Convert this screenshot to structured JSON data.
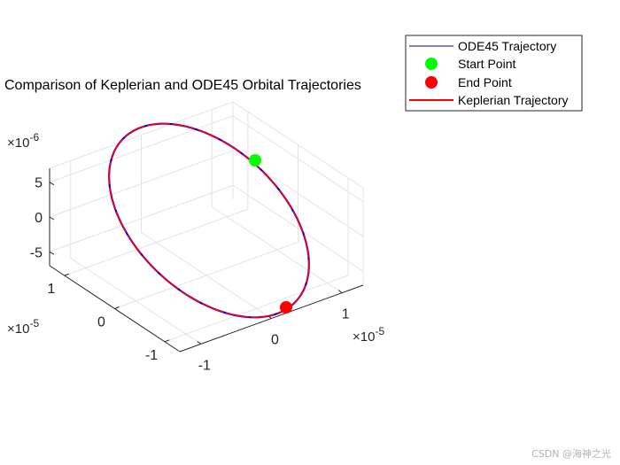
{
  "chart_data": {
    "type": "line",
    "title": "Comparison of Keplerian and ODE45 Orbital Trajectories",
    "axes": {
      "x": {
        "ticks": [
          "-1",
          "0",
          "1"
        ],
        "exponent_base": "×10",
        "exponent_power": "-5",
        "range": [
          -1.3e-05,
          1.3e-05
        ]
      },
      "y": {
        "ticks": [
          "-1",
          "0",
          "1"
        ],
        "exponent_base": "×10",
        "exponent_power": "-5",
        "range": [
          -1.3e-05,
          1.3e-05
        ]
      },
      "z": {
        "ticks": [
          "-5",
          "0",
          "5"
        ],
        "exponent_base": "×10",
        "exponent_power": "-6",
        "range": [
          -7e-06,
          7e-06
        ]
      },
      "grid": true,
      "view": "3d"
    },
    "series": [
      {
        "name": "ODE45 Trajectory",
        "color": "#0000ff",
        "style": "line"
      },
      {
        "name": "Start Point",
        "color": "#00ff00",
        "style": "marker"
      },
      {
        "name": "End Point",
        "color": "#ff0000",
        "style": "marker"
      },
      {
        "name": "Keplerian Trajectory",
        "color": "#ff0000",
        "style": "line"
      }
    ],
    "legend_position": "top-right",
    "watermark": "CSDN @海神之光"
  }
}
